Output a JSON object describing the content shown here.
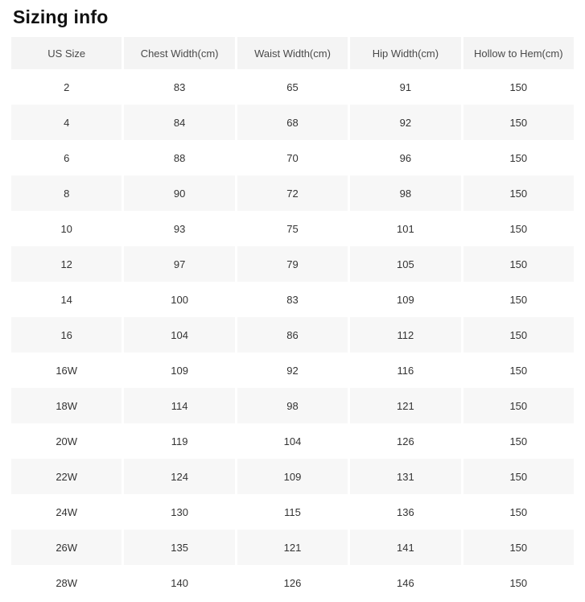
{
  "page": {
    "title": "Sizing info"
  },
  "colors": {
    "title_color": "#111111",
    "header_bg": "#f4f4f4",
    "header_text": "#4a4a4a",
    "row_alt_bg": "#f7f7f7",
    "cell_text": "#333333"
  },
  "table": {
    "columns": [
      "US Size",
      "Chest Width(cm)",
      "Waist Width(cm)",
      "Hip Width(cm)",
      "Hollow to Hem(cm)"
    ],
    "rows": [
      [
        "2",
        "83",
        "65",
        "91",
        "150"
      ],
      [
        "4",
        "84",
        "68",
        "92",
        "150"
      ],
      [
        "6",
        "88",
        "70",
        "96",
        "150"
      ],
      [
        "8",
        "90",
        "72",
        "98",
        "150"
      ],
      [
        "10",
        "93",
        "75",
        "101",
        "150"
      ],
      [
        "12",
        "97",
        "79",
        "105",
        "150"
      ],
      [
        "14",
        "100",
        "83",
        "109",
        "150"
      ],
      [
        "16",
        "104",
        "86",
        "112",
        "150"
      ],
      [
        "16W",
        "109",
        "92",
        "116",
        "150"
      ],
      [
        "18W",
        "114",
        "98",
        "121",
        "150"
      ],
      [
        "20W",
        "119",
        "104",
        "126",
        "150"
      ],
      [
        "22W",
        "124",
        "109",
        "131",
        "150"
      ],
      [
        "24W",
        "130",
        "115",
        "136",
        "150"
      ],
      [
        "26W",
        "135",
        "121",
        "141",
        "150"
      ],
      [
        "28W",
        "140",
        "126",
        "146",
        "150"
      ]
    ]
  }
}
